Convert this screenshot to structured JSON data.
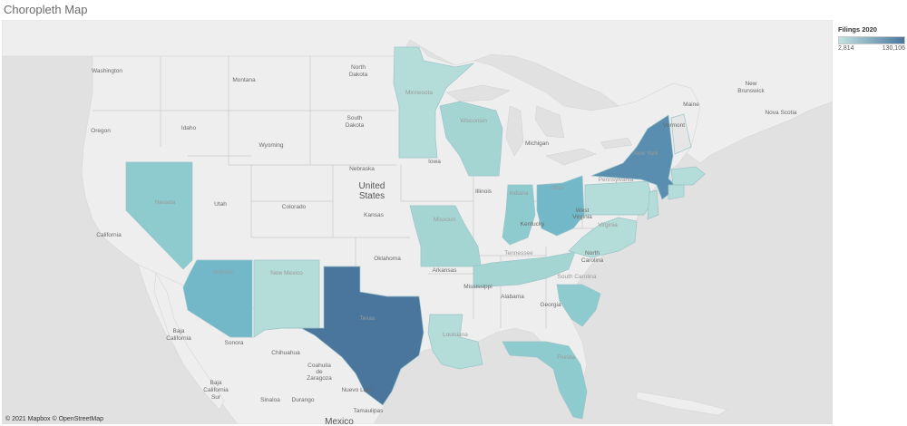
{
  "title": "Choropleth Map",
  "legend": {
    "title": "Filings 2020",
    "min_label": "2,814",
    "max_label": "130,106",
    "min_value": 2814,
    "max_value": 130106,
    "color_low": "#c2e2df",
    "color_high": "#4a769e"
  },
  "attribution": "© 2021 Mapbox © OpenStreetMap",
  "colors": {
    "land": "#eeeeee",
    "water": "#e1e1e1",
    "border": "#c8c8c8",
    "tint_light": "#b4dcd8",
    "tint_mid": "#8ecbcf",
    "tint_strong": "#72b8c8",
    "tint_dark": "#4a769e",
    "tint_darker": "#5a8eb0"
  },
  "labels": {
    "country_us": "United",
    "country_us2": "States",
    "mexico": "Mexico",
    "washington": "Washington",
    "oregon": "Oregon",
    "california": "California",
    "idaho": "Idaho",
    "montana": "Montana",
    "wyoming": "Wyoming",
    "utah": "Utah",
    "colorado": "Colorado",
    "nevada": "Nevada",
    "arizona": "Arizona",
    "new_mexico": "New Mexico",
    "north_dakota_1": "North",
    "north_dakota_2": "Dakota",
    "south_dakota_1": "South",
    "south_dakota_2": "Dakota",
    "nebraska": "Nebraska",
    "kansas": "Kansas",
    "oklahoma": "Oklahoma",
    "texas": "Texas",
    "minnesota": "Minnesota",
    "iowa": "Iowa",
    "missouri": "Missouri",
    "arkansas": "Arkansas",
    "louisiana": "Louisiana",
    "wisconsin": "Wisconsin",
    "illinois": "Illinois",
    "michigan": "Michigan",
    "indiana": "Indiana",
    "ohio": "Ohio",
    "kentucky": "Kentucky",
    "tennessee": "Tennessee",
    "mississippi": "Mississippi",
    "alabama": "Alabama",
    "georgia": "Georgia",
    "florida": "Florida",
    "south_carolina": "South Carolina",
    "north_carolina_1": "North",
    "north_carolina_2": "Carolina",
    "virginia": "Virginia",
    "west_virginia_1": "West",
    "west_virginia_2": "Virginia",
    "pennsylvania": "Pennsylvania",
    "new_york": "New York",
    "vermont": "Vermont",
    "maine": "Maine",
    "new_brunswick_1": "New",
    "new_brunswick_2": "Brunswick",
    "nova_scotia": "Nova Scotia",
    "baja_california_1": "Baja",
    "baja_california_2": "California",
    "sonora": "Sonora",
    "chihuahua": "Chihuahua",
    "coahuila_1": "Coahuila",
    "coahuila_2": "de",
    "coahuila_3": "Zaragoza",
    "nuevo_leon": "Nuevo León",
    "baja_california_sur_1": "Baja",
    "baja_california_sur_2": "California",
    "baja_california_sur_3": "Sur",
    "sinaloa": "Sinaloa",
    "durango": "Durango",
    "tamaulipas": "Tamaulipas"
  }
}
